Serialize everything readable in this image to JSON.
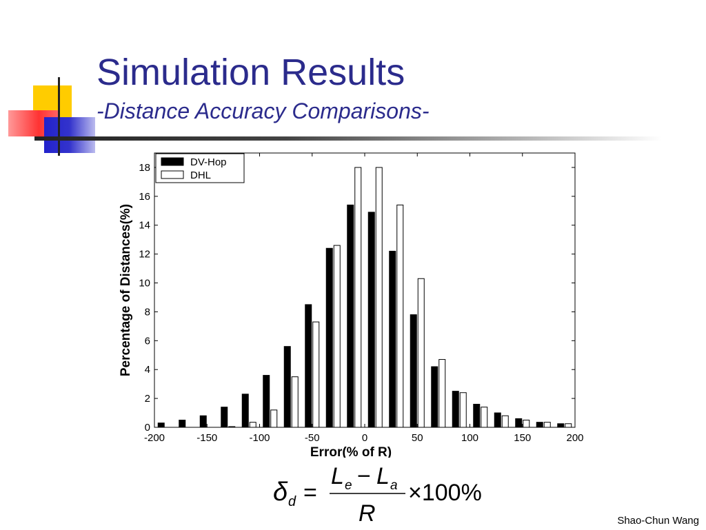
{
  "slide": {
    "title": "Simulation Results",
    "subtitle": "-Distance Accuracy Comparisons-",
    "author": "Shao-Chun Wang"
  },
  "formula": {
    "lhs_symbol": "δ",
    "lhs_subscript": "d",
    "numerator_a": "L",
    "numerator_a_sub": "e",
    "minus": "−",
    "numerator_b": "L",
    "numerator_b_sub": "a",
    "denominator": "R",
    "multiplier": "×100%"
  },
  "colors": {
    "title": "#2b2b8c",
    "dvhop": "#000000",
    "dhl": "#ffffff"
  },
  "chart_data": {
    "type": "bar",
    "xlabel": "Error(% of R)",
    "ylabel": "Percentage of Distances(%)",
    "xlim": [
      -200,
      200
    ],
    "ylim": [
      0,
      19
    ],
    "xticks": [
      -200,
      -150,
      -100,
      -50,
      0,
      50,
      100,
      150,
      200
    ],
    "yticks": [
      0,
      2,
      4,
      6,
      8,
      10,
      12,
      14,
      16,
      18
    ],
    "legend_position": "top-left",
    "x": [
      -190,
      -170,
      -150,
      -130,
      -110,
      -90,
      -70,
      -50,
      -30,
      -10,
      10,
      30,
      50,
      70,
      90,
      110,
      130,
      150,
      170,
      190
    ],
    "series": [
      {
        "name": "DV-Hop",
        "fill": "#000000",
        "values": [
          0.3,
          0.5,
          0.8,
          1.4,
          2.3,
          3.6,
          5.6,
          8.5,
          12.4,
          15.4,
          14.9,
          12.2,
          7.8,
          4.2,
          2.5,
          1.6,
          1.0,
          0.6,
          0.35,
          0.25
        ]
      },
      {
        "name": "DHL",
        "fill": "#ffffff",
        "values": [
          0.0,
          0.0,
          0.0,
          0.05,
          0.35,
          1.2,
          3.5,
          7.3,
          12.6,
          18.0,
          18.0,
          15.4,
          10.3,
          4.7,
          2.4,
          1.4,
          0.8,
          0.5,
          0.35,
          0.25
        ]
      }
    ]
  }
}
